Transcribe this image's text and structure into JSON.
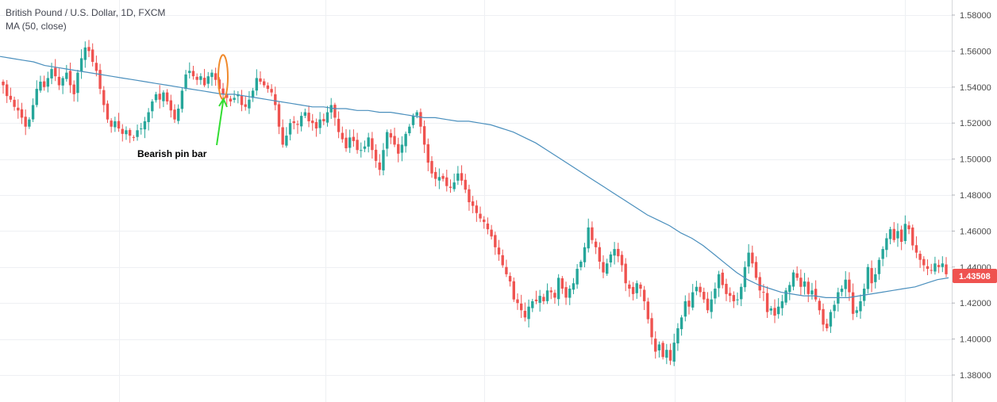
{
  "chart_data": {
    "type": "candlestick",
    "title": "British Pound / U.S. Dollar, 1D, FXCM",
    "indicator": "MA (50, close)",
    "ylim": [
      1.37,
      1.59
    ],
    "y_ticks": [
      "1.58000",
      "1.56000",
      "1.54000",
      "1.52000",
      "1.50000",
      "1.48000",
      "1.46000",
      "1.44000",
      "1.42000",
      "1.40000",
      "1.38000"
    ],
    "last_price": "1.43508",
    "colors": {
      "up": "#26a69a",
      "down": "#ef5350",
      "ma": "#4a8fbd",
      "grid": "#eef0f3",
      "price_tag": "#ef5350",
      "ellipse": "#f08a2c",
      "arrow": "#33dd33"
    },
    "annotation": {
      "text": "Bearish pin bar",
      "candle_index": 59
    },
    "closes": [
      1.541,
      1.535,
      1.533,
      1.529,
      1.527,
      1.523,
      1.518,
      1.522,
      1.53,
      1.539,
      1.543,
      1.54,
      1.545,
      1.55,
      1.546,
      1.541,
      1.545,
      1.548,
      1.541,
      1.536,
      1.548,
      1.556,
      1.562,
      1.56,
      1.554,
      1.549,
      1.539,
      1.53,
      1.522,
      1.518,
      1.521,
      1.517,
      1.514,
      1.516,
      1.513,
      1.512,
      1.516,
      1.517,
      1.521,
      1.526,
      1.532,
      1.536,
      1.533,
      1.537,
      1.532,
      1.527,
      1.522,
      1.528,
      1.538,
      1.547,
      1.549,
      1.546,
      1.544,
      1.546,
      1.541,
      1.546,
      1.548,
      1.544,
      1.539,
      1.536,
      1.534,
      1.532,
      1.534,
      1.536,
      1.53,
      1.529,
      1.533,
      1.538,
      1.545,
      1.543,
      1.541,
      1.539,
      1.537,
      1.53,
      1.518,
      1.508,
      1.513,
      1.52,
      1.52,
      1.519,
      1.524,
      1.526,
      1.521,
      1.52,
      1.517,
      1.522,
      1.521,
      1.526,
      1.53,
      1.523,
      1.515,
      1.511,
      1.506,
      1.512,
      1.51,
      1.505,
      1.505,
      1.507,
      1.512,
      1.505,
      1.499,
      1.494,
      1.505,
      1.515,
      1.512,
      1.508,
      1.503,
      1.508,
      1.514,
      1.518,
      1.524,
      1.526,
      1.518,
      1.508,
      1.498,
      1.492,
      1.489,
      1.49,
      1.489,
      1.485,
      1.484,
      1.487,
      1.492,
      1.488,
      1.483,
      1.476,
      1.474,
      1.47,
      1.467,
      1.465,
      1.461,
      1.457,
      1.451,
      1.447,
      1.441,
      1.436,
      1.432,
      1.422,
      1.42,
      1.416,
      1.412,
      1.418,
      1.421,
      1.421,
      1.424,
      1.421,
      1.427,
      1.426,
      1.423,
      1.434,
      1.428,
      1.423,
      1.428,
      1.431,
      1.439,
      1.443,
      1.451,
      1.462,
      1.455,
      1.451,
      1.443,
      1.437,
      1.442,
      1.447,
      1.45,
      1.446,
      1.441,
      1.431,
      1.428,
      1.425,
      1.431,
      1.428,
      1.421,
      1.411,
      1.401,
      1.393,
      1.397,
      1.39,
      1.394,
      1.388,
      1.398,
      1.406,
      1.412,
      1.421,
      1.418,
      1.426,
      1.429,
      1.426,
      1.422,
      1.416,
      1.422,
      1.428,
      1.436,
      1.43,
      1.425,
      1.424,
      1.421,
      1.422,
      1.429,
      1.44,
      1.448,
      1.442,
      1.434,
      1.427,
      1.426,
      1.415,
      1.417,
      1.413,
      1.418,
      1.421,
      1.427,
      1.43,
      1.437,
      1.434,
      1.429,
      1.432,
      1.425,
      1.427,
      1.422,
      1.416,
      1.408,
      1.406,
      1.415,
      1.419,
      1.426,
      1.428,
      1.433,
      1.426,
      1.414,
      1.416,
      1.421,
      1.428,
      1.44,
      1.431,
      1.436,
      1.444,
      1.45,
      1.456,
      1.461,
      1.455,
      1.46,
      1.454,
      1.464,
      1.461,
      1.452,
      1.448,
      1.444,
      1.441,
      1.439,
      1.438,
      1.442,
      1.44,
      1.442,
      1.436
    ],
    "ma50": [
      1.557,
      1.556,
      1.555,
      1.554,
      1.552,
      1.551,
      1.55,
      1.549,
      1.548,
      1.547,
      1.546,
      1.545,
      1.544,
      1.543,
      1.542,
      1.541,
      1.54,
      1.539,
      1.538,
      1.537,
      1.536,
      1.536,
      1.535,
      1.534,
      1.533,
      1.532,
      1.531,
      1.53,
      1.529,
      1.529,
      1.528,
      1.528,
      1.527,
      1.527,
      1.526,
      1.526,
      1.525,
      1.524,
      1.523,
      1.523,
      1.522,
      1.521,
      1.521,
      1.52,
      1.519,
      1.517,
      1.515,
      1.512,
      1.509,
      1.505,
      1.501,
      1.497,
      1.493,
      1.489,
      1.485,
      1.481,
      1.477,
      1.473,
      1.469,
      1.466,
      1.463,
      1.459,
      1.456,
      1.452,
      1.447,
      1.442,
      1.437,
      1.433,
      1.43,
      1.428,
      1.426,
      1.425,
      1.424,
      1.424,
      1.423,
      1.423,
      1.423,
      1.424,
      1.425,
      1.426,
      1.427,
      1.428,
      1.429,
      1.431,
      1.433,
      1.434
    ],
    "ma_x_start": 0,
    "ma_x_end": 1195,
    "candles_x_start": 4,
    "candles_x_end": 1192
  }
}
